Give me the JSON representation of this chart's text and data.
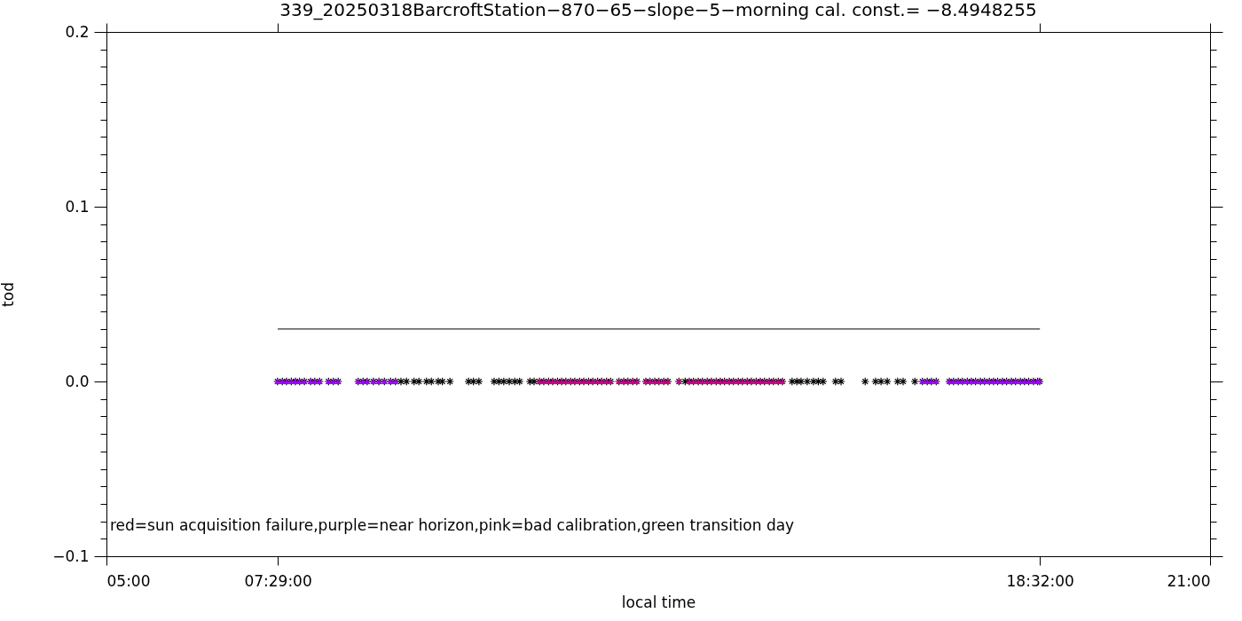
{
  "chart_data": {
    "type": "scatter",
    "title": "339_20250318BarcroftStation−870−65−slope−5−morning cal. const.= −8.4948255",
    "xlabel": "local time",
    "ylabel": "tod",
    "annotations": [
      "red=sun acquisition failure,purple=near horizon,pink=bad calibration,green transition day"
    ],
    "xlim": [
      5,
      21
    ],
    "xticks": [
      {
        "value": 5,
        "label": "05:00"
      },
      {
        "value": 7.4833,
        "label": "07:29:00"
      },
      {
        "value": 18.5333,
        "label": "18:32:00"
      },
      {
        "value": 21,
        "label": "21:00"
      }
    ],
    "ylim": [
      -0.1,
      0.2
    ],
    "yticks": [
      -0.1,
      {
        "value": 0,
        "label": "0.0"
      },
      0.1,
      0.2,
      {
        "value": -0.09,
        "label": null
      },
      {
        "value": -0.08,
        "label": null
      },
      {
        "value": -0.07,
        "label": null
      },
      {
        "value": -0.06,
        "label": null
      },
      {
        "value": -0.05,
        "label": null
      },
      {
        "value": -0.04,
        "label": null
      },
      {
        "value": -0.03,
        "label": null
      },
      {
        "value": -0.02,
        "label": null
      },
      {
        "value": -0.01,
        "label": null
      },
      {
        "value": 0.01,
        "label": null
      },
      {
        "value": 0.02,
        "label": null
      },
      {
        "value": 0.03,
        "label": null
      },
      {
        "value": 0.04,
        "label": null
      },
      {
        "value": 0.05,
        "label": null
      },
      {
        "value": 0.06,
        "label": null
      },
      {
        "value": 0.07,
        "label": null
      },
      {
        "value": 0.08,
        "label": null
      },
      {
        "value": 0.09,
        "label": null
      },
      {
        "value": 0.11,
        "label": null
      },
      {
        "value": 0.12,
        "label": null
      },
      {
        "value": 0.13,
        "label": null
      },
      {
        "value": 0.14,
        "label": null
      },
      {
        "value": 0.15,
        "label": null
      },
      {
        "value": 0.16,
        "label": null
      },
      {
        "value": 0.17,
        "label": null
      },
      {
        "value": 0.18,
        "label": null
      },
      {
        "value": 0.19,
        "label": null
      }
    ],
    "grid": false,
    "series": [
      {
        "type": "line",
        "color": "#000000",
        "x": [
          7.4833,
          18.5333
        ],
        "values": [
          0.03,
          0.03
        ]
      },
      {
        "marker": "cross",
        "color": "#000000",
        "x": [
          7.48,
          7.55,
          7.61,
          7.68,
          7.74,
          7.8,
          7.87,
          7.96,
          8.02,
          8.09,
          8.22,
          8.29,
          8.36,
          8.65,
          8.72,
          8.78,
          8.87,
          8.95,
          9.03,
          9.12,
          9.19,
          9.27,
          9.35,
          9.46,
          9.53,
          9.64,
          9.71,
          9.81,
          9.87,
          9.98,
          10.25,
          10.32,
          10.4,
          10.62,
          10.69,
          10.76,
          10.84,
          10.92,
          10.99,
          11.14,
          11.2,
          11.28,
          11.34,
          11.41,
          11.47,
          11.54,
          11.6,
          11.66,
          11.73,
          11.79,
          11.86,
          11.92,
          11.99,
          12.05,
          12.12,
          12.18,
          12.25,
          12.31,
          12.43,
          12.5,
          12.56,
          12.63,
          12.69,
          12.82,
          12.88,
          12.95,
          13.01,
          13.08,
          13.14,
          13.3,
          13.39,
          13.45,
          13.51,
          13.58,
          13.64,
          13.71,
          13.77,
          13.84,
          13.9,
          13.96,
          14.03,
          14.09,
          14.16,
          14.22,
          14.29,
          14.35,
          14.42,
          14.48,
          14.54,
          14.61,
          14.67,
          14.74,
          14.8,
          14.94,
          15.01,
          15.07,
          15.16,
          15.25,
          15.32,
          15.39,
          15.57,
          15.65,
          16.0,
          16.15,
          16.23,
          16.32,
          16.47,
          16.55,
          16.72,
          16.83,
          16.9,
          16.96,
          17.03,
          17.22,
          17.28,
          17.35,
          17.41,
          17.48,
          17.54,
          17.6,
          17.67,
          17.73,
          17.8,
          17.86,
          17.92,
          17.99,
          18.05,
          18.12,
          18.18,
          18.25,
          18.31,
          18.37,
          18.44,
          18.5,
          18.53
        ],
        "values": [
          0,
          0,
          0,
          0,
          0,
          0,
          0,
          0,
          0,
          0,
          0,
          0,
          0,
          0,
          0,
          0,
          0,
          0,
          0,
          0,
          0,
          0,
          0,
          0,
          0,
          0,
          0,
          0,
          0,
          0,
          0,
          0,
          0,
          0,
          0,
          0,
          0,
          0,
          0,
          0,
          0,
          0,
          0,
          0,
          0,
          0,
          0,
          0,
          0,
          0,
          0,
          0,
          0,
          0,
          0,
          0,
          0,
          0,
          0,
          0,
          0,
          0,
          0,
          0,
          0,
          0,
          0,
          0,
          0,
          0,
          0,
          0,
          0,
          0,
          0,
          0,
          0,
          0,
          0,
          0,
          0,
          0,
          0,
          0,
          0,
          0,
          0,
          0,
          0,
          0,
          0,
          0,
          0,
          0,
          0,
          0,
          0,
          0,
          0,
          0,
          0,
          0,
          0,
          0,
          0,
          0,
          0,
          0,
          0,
          0,
          0,
          0,
          0,
          0,
          0,
          0,
          0,
          0,
          0,
          0,
          0,
          0,
          0,
          0,
          0,
          0,
          0,
          0,
          0,
          0,
          0,
          0,
          0,
          0,
          0
        ]
      },
      {
        "marker": "triangle",
        "color": "#a000ff",
        "x": [
          7.48,
          7.55,
          7.61,
          7.68,
          7.74,
          7.8,
          7.87,
          7.96,
          8.02,
          8.09,
          8.22,
          8.29,
          8.36,
          8.65,
          8.72,
          8.78,
          8.87,
          8.95,
          9.03,
          9.12,
          9.19,
          16.83,
          16.9,
          16.96,
          17.03,
          17.22,
          17.28,
          17.35,
          17.41,
          17.48,
          17.54,
          17.6,
          17.67,
          17.73,
          17.8,
          17.86,
          17.92,
          17.99,
          18.05,
          18.12,
          18.18,
          18.25,
          18.31,
          18.37,
          18.44,
          18.5,
          18.53
        ],
        "values": [
          0,
          0,
          0,
          0,
          0,
          0,
          0,
          0,
          0,
          0,
          0,
          0,
          0,
          0,
          0,
          0,
          0,
          0,
          0,
          0,
          0,
          0,
          0,
          0,
          0,
          0,
          0,
          0,
          0,
          0,
          0,
          0,
          0,
          0,
          0,
          0,
          0,
          0,
          0,
          0,
          0,
          0,
          0,
          0,
          0,
          0,
          0
        ]
      },
      {
        "marker": "triangle",
        "color": "#c8008c",
        "x": [
          11.28,
          11.34,
          11.41,
          11.47,
          11.54,
          11.6,
          11.66,
          11.73,
          11.79,
          11.86,
          11.92,
          11.99,
          12.05,
          12.12,
          12.18,
          12.25,
          12.31,
          12.43,
          12.5,
          12.56,
          12.63,
          12.69,
          12.82,
          12.88,
          12.95,
          13.01,
          13.08,
          13.14,
          13.3,
          13.45,
          13.51,
          13.58,
          13.64,
          13.71,
          13.77,
          13.84,
          13.9,
          13.96,
          14.03,
          14.09,
          14.16,
          14.22,
          14.29,
          14.35,
          14.42,
          14.48,
          14.54,
          14.61,
          14.67,
          14.74,
          14.8
        ],
        "values": [
          0,
          0,
          0,
          0,
          0,
          0,
          0,
          0,
          0,
          0,
          0,
          0,
          0,
          0,
          0,
          0,
          0,
          0,
          0,
          0,
          0,
          0,
          0,
          0,
          0,
          0,
          0,
          0,
          0,
          0,
          0,
          0,
          0,
          0,
          0,
          0,
          0,
          0,
          0,
          0,
          0,
          0,
          0,
          0,
          0,
          0,
          0,
          0,
          0,
          0,
          0
        ]
      }
    ]
  }
}
